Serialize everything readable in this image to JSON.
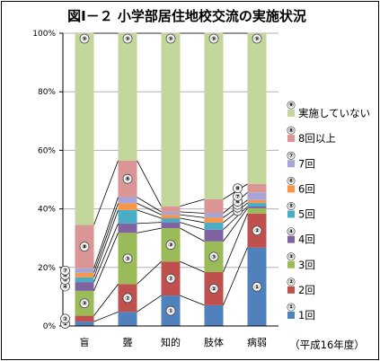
{
  "chart_data": {
    "type": "bar",
    "stacked": true,
    "title": "図Ⅰ－２ 小学部居住地校交流の実施状況",
    "note": "（平成16年度）",
    "categories": [
      "盲",
      "聾",
      "知的",
      "肢体",
      "病弱"
    ],
    "y_ticks": [
      "0%",
      "20%",
      "40%",
      "60%",
      "80%",
      "100%"
    ],
    "ylim": [
      0,
      100
    ],
    "grid": true,
    "legend_position": "right",
    "series": [
      {
        "num": "①",
        "name": "1回",
        "color": "#4f81bd",
        "values": [
          1.5,
          4.8,
          10.4,
          7.1,
          26.8
        ]
      },
      {
        "num": "②",
        "name": "2回",
        "color": "#c0504d",
        "values": [
          2.0,
          9.5,
          11.6,
          11.3,
          11.6
        ]
      },
      {
        "num": "③",
        "name": "3回",
        "color": "#9bbb59",
        "values": [
          8.5,
          17.5,
          11.4,
          10.5,
          1.8
        ]
      },
      {
        "num": "④",
        "name": "4回",
        "color": "#8064a2",
        "values": [
          3.0,
          3.2,
          2.0,
          4.0,
          0.6
        ]
      },
      {
        "num": "⑤",
        "name": "5回",
        "color": "#4bacc6",
        "values": [
          1.6,
          4.6,
          1.4,
          2.4,
          1.2
        ]
      },
      {
        "num": "⑥",
        "name": "6回",
        "color": "#f79646",
        "values": [
          1.6,
          2.3,
          1.2,
          1.7,
          1.0
        ]
      },
      {
        "num": "⑦",
        "name": "7回",
        "color": "#a5a5d9",
        "values": [
          1.5,
          2.1,
          1.0,
          1.5,
          2.6
        ]
      },
      {
        "num": "⑧",
        "name": "8回以上",
        "color": "#d99694",
        "values": [
          14.8,
          12.5,
          1.9,
          4.8,
          2.9
        ]
      },
      {
        "num": "⑨",
        "name": "実施していない",
        "color": "#c3d69b",
        "values": [
          65.5,
          43.5,
          59.1,
          56.7,
          51.5
        ]
      }
    ]
  }
}
